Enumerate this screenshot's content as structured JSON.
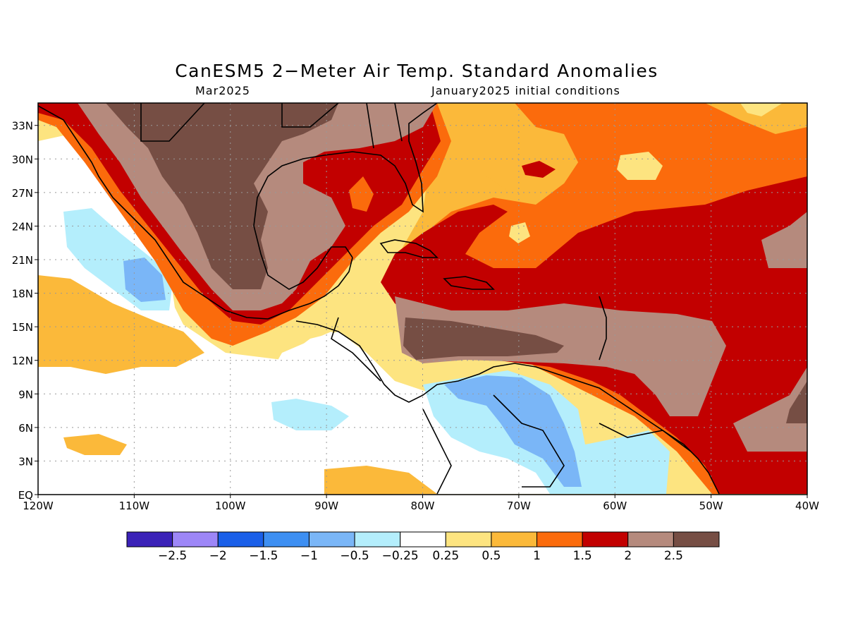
{
  "title": "CanESM5 2−Meter Air Temp. Standard Anomalies",
  "subtitle_left": "Mar2025",
  "subtitle_right": "January2025 initial conditions",
  "map": {
    "lon_range": [
      -120,
      -40
    ],
    "lat_range": [
      0,
      35
    ],
    "lat_ticks": [
      {
        "value": 33,
        "label": "33N"
      },
      {
        "value": 30,
        "label": "30N"
      },
      {
        "value": 27,
        "label": "27N"
      },
      {
        "value": 24,
        "label": "24N"
      },
      {
        "value": 21,
        "label": "21N"
      },
      {
        "value": 18,
        "label": "18N"
      },
      {
        "value": 15,
        "label": "15N"
      },
      {
        "value": 12,
        "label": "12N"
      },
      {
        "value": 9,
        "label": "9N"
      },
      {
        "value": 6,
        "label": "6N"
      },
      {
        "value": 3,
        "label": "3N"
      },
      {
        "value": 0,
        "label": "EQ"
      }
    ],
    "lon_ticks": [
      {
        "value": -120,
        "label": "120W"
      },
      {
        "value": -110,
        "label": "110W"
      },
      {
        "value": -100,
        "label": "100W"
      },
      {
        "value": -90,
        "label": "90W"
      },
      {
        "value": -80,
        "label": "80W"
      },
      {
        "value": -70,
        "label": "70W"
      },
      {
        "value": -60,
        "label": "60W"
      },
      {
        "value": -50,
        "label": "50W"
      },
      {
        "value": -40,
        "label": "40W"
      }
    ],
    "grid": true
  },
  "colorbar": {
    "colors": [
      "#3b22b8",
      "#9d86f7",
      "#1a5fe8",
      "#3d8ff2",
      "#7ab6f7",
      "#b4eefc",
      "#ffffff",
      "#fde480",
      "#fbb93a",
      "#fb6b0c",
      "#c20000",
      "#b58a7d",
      "#764e44"
    ],
    "labels": [
      "−2.5",
      "−2",
      "−1.5",
      "−1",
      "−0.5",
      "−0.25",
      "0.25",
      "0.5",
      "1",
      "1.5",
      "2",
      "2.5"
    ]
  },
  "colors": {
    "white": "#ffffff",
    "neg_025": "#b4eefc",
    "neg_05": "#7ab6f7",
    "pos_025": "#fde480",
    "pos_05": "#fbb93a",
    "pos_1": "#fb6b0c",
    "pos_15": "#c20000",
    "pos_2": "#b58a7d",
    "pos_25": "#764e44"
  }
}
